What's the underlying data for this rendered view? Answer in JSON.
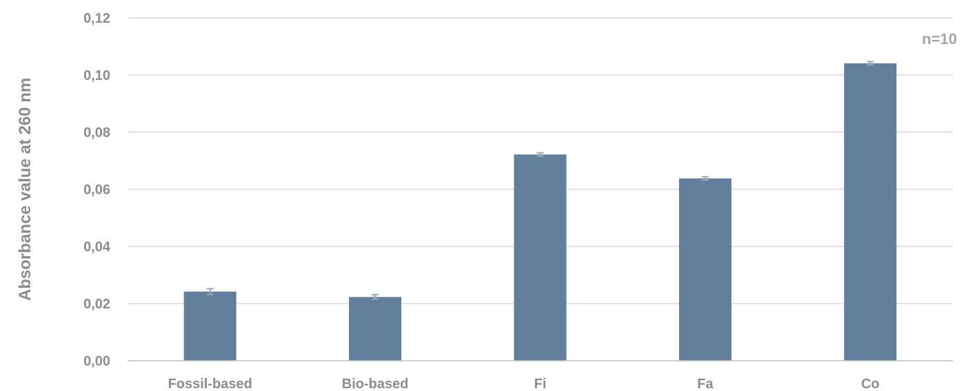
{
  "chart_data": {
    "type": "bar",
    "categories": [
      "Fossil-based",
      "Bio-based",
      "Fi",
      "Fa",
      "Co"
    ],
    "values": [
      0.0242,
      0.0223,
      0.0722,
      0.0638,
      0.1041
    ],
    "errors": [
      0.001,
      0.0008,
      0.0006,
      0.0006,
      0.0006
    ],
    "title": "",
    "xlabel": "",
    "ylabel": "Absorbance value at 260 nm",
    "ylim": [
      0,
      0.12
    ],
    "yticks": [
      "0,00",
      "0,02",
      "0,04",
      "0,06",
      "0,08",
      "0,10",
      "0,12"
    ],
    "grid": true,
    "annotation": "n=10",
    "colors": {
      "bar": "#627f9c",
      "errorbar": "#9aa6b2",
      "grid": "#d9d9d9",
      "axis": "#bfbfbf",
      "text": "#8c8c8c"
    }
  }
}
